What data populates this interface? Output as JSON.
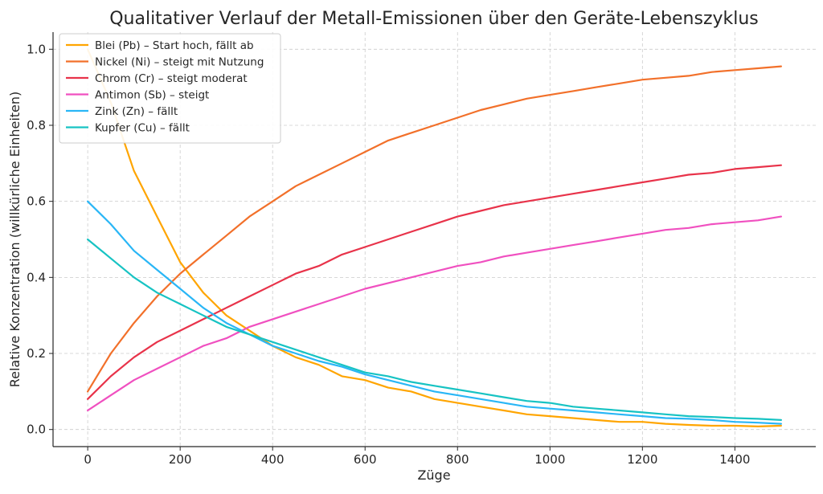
{
  "chart_data": {
    "type": "line",
    "title": "Qualitativer Verlauf der Metall-Emissionen über den Geräte-Lebenszyklus",
    "xlabel": "Züge",
    "ylabel": "Relative Konzentration (willkürliche Einheiten)",
    "xlim": [
      -75,
      1575
    ],
    "ylim": [
      -0.045,
      1.045
    ],
    "xticks": [
      0,
      200,
      400,
      600,
      800,
      1000,
      1200,
      1400
    ],
    "yticks": [
      0.0,
      0.2,
      0.4,
      0.6,
      0.8,
      1.0
    ],
    "grid": true,
    "legend_position": "top-left",
    "x": [
      0,
      50,
      100,
      150,
      200,
      250,
      300,
      350,
      400,
      450,
      500,
      550,
      600,
      650,
      700,
      750,
      800,
      850,
      900,
      950,
      1000,
      1050,
      1100,
      1150,
      1200,
      1250,
      1300,
      1350,
      1400,
      1450,
      1500
    ],
    "series": [
      {
        "name": "Blei (Pb) – Start hoch, fällt ab",
        "color": "#FFA500",
        "values": [
          1.0,
          0.86,
          0.68,
          0.56,
          0.44,
          0.36,
          0.3,
          0.26,
          0.22,
          0.19,
          0.17,
          0.14,
          0.13,
          0.11,
          0.1,
          0.08,
          0.07,
          0.06,
          0.05,
          0.04,
          0.035,
          0.03,
          0.025,
          0.02,
          0.02,
          0.015,
          0.012,
          0.01,
          0.01,
          0.008,
          0.01
        ]
      },
      {
        "name": "Nickel (Ni) – steigt mit Nutzung",
        "color": "#F2702A",
        "values": [
          0.1,
          0.2,
          0.28,
          0.35,
          0.41,
          0.46,
          0.51,
          0.56,
          0.6,
          0.64,
          0.67,
          0.7,
          0.73,
          0.76,
          0.78,
          0.8,
          0.82,
          0.84,
          0.855,
          0.87,
          0.88,
          0.89,
          0.9,
          0.91,
          0.92,
          0.925,
          0.93,
          0.94,
          0.945,
          0.95,
          0.955
        ]
      },
      {
        "name": "Chrom (Cr) – steigt moderat",
        "color": "#E8334A",
        "values": [
          0.08,
          0.14,
          0.19,
          0.23,
          0.26,
          0.29,
          0.32,
          0.35,
          0.38,
          0.41,
          0.43,
          0.46,
          0.48,
          0.5,
          0.52,
          0.54,
          0.56,
          0.575,
          0.59,
          0.6,
          0.61,
          0.62,
          0.63,
          0.64,
          0.65,
          0.66,
          0.67,
          0.675,
          0.685,
          0.69,
          0.695
        ]
      },
      {
        "name": "Antimon (Sb) – steigt",
        "color": "#F050C0",
        "values": [
          0.05,
          0.09,
          0.13,
          0.16,
          0.19,
          0.22,
          0.24,
          0.27,
          0.29,
          0.31,
          0.33,
          0.35,
          0.37,
          0.385,
          0.4,
          0.415,
          0.43,
          0.44,
          0.455,
          0.465,
          0.475,
          0.485,
          0.495,
          0.505,
          0.515,
          0.525,
          0.53,
          0.54,
          0.545,
          0.55,
          0.56
        ]
      },
      {
        "name": "Zink (Zn) – fällt",
        "color": "#29B6F6",
        "values": [
          0.6,
          0.54,
          0.47,
          0.42,
          0.37,
          0.32,
          0.28,
          0.25,
          0.22,
          0.2,
          0.18,
          0.165,
          0.145,
          0.13,
          0.115,
          0.1,
          0.09,
          0.08,
          0.07,
          0.06,
          0.055,
          0.05,
          0.045,
          0.04,
          0.035,
          0.03,
          0.028,
          0.025,
          0.02,
          0.018,
          0.015
        ]
      },
      {
        "name": "Kupfer (Cu) – fällt",
        "color": "#17C3C3",
        "values": [
          0.5,
          0.45,
          0.4,
          0.36,
          0.33,
          0.3,
          0.27,
          0.25,
          0.23,
          0.21,
          0.19,
          0.17,
          0.15,
          0.14,
          0.125,
          0.115,
          0.105,
          0.095,
          0.085,
          0.075,
          0.07,
          0.06,
          0.055,
          0.05,
          0.045,
          0.04,
          0.035,
          0.033,
          0.03,
          0.028,
          0.025
        ]
      }
    ]
  }
}
